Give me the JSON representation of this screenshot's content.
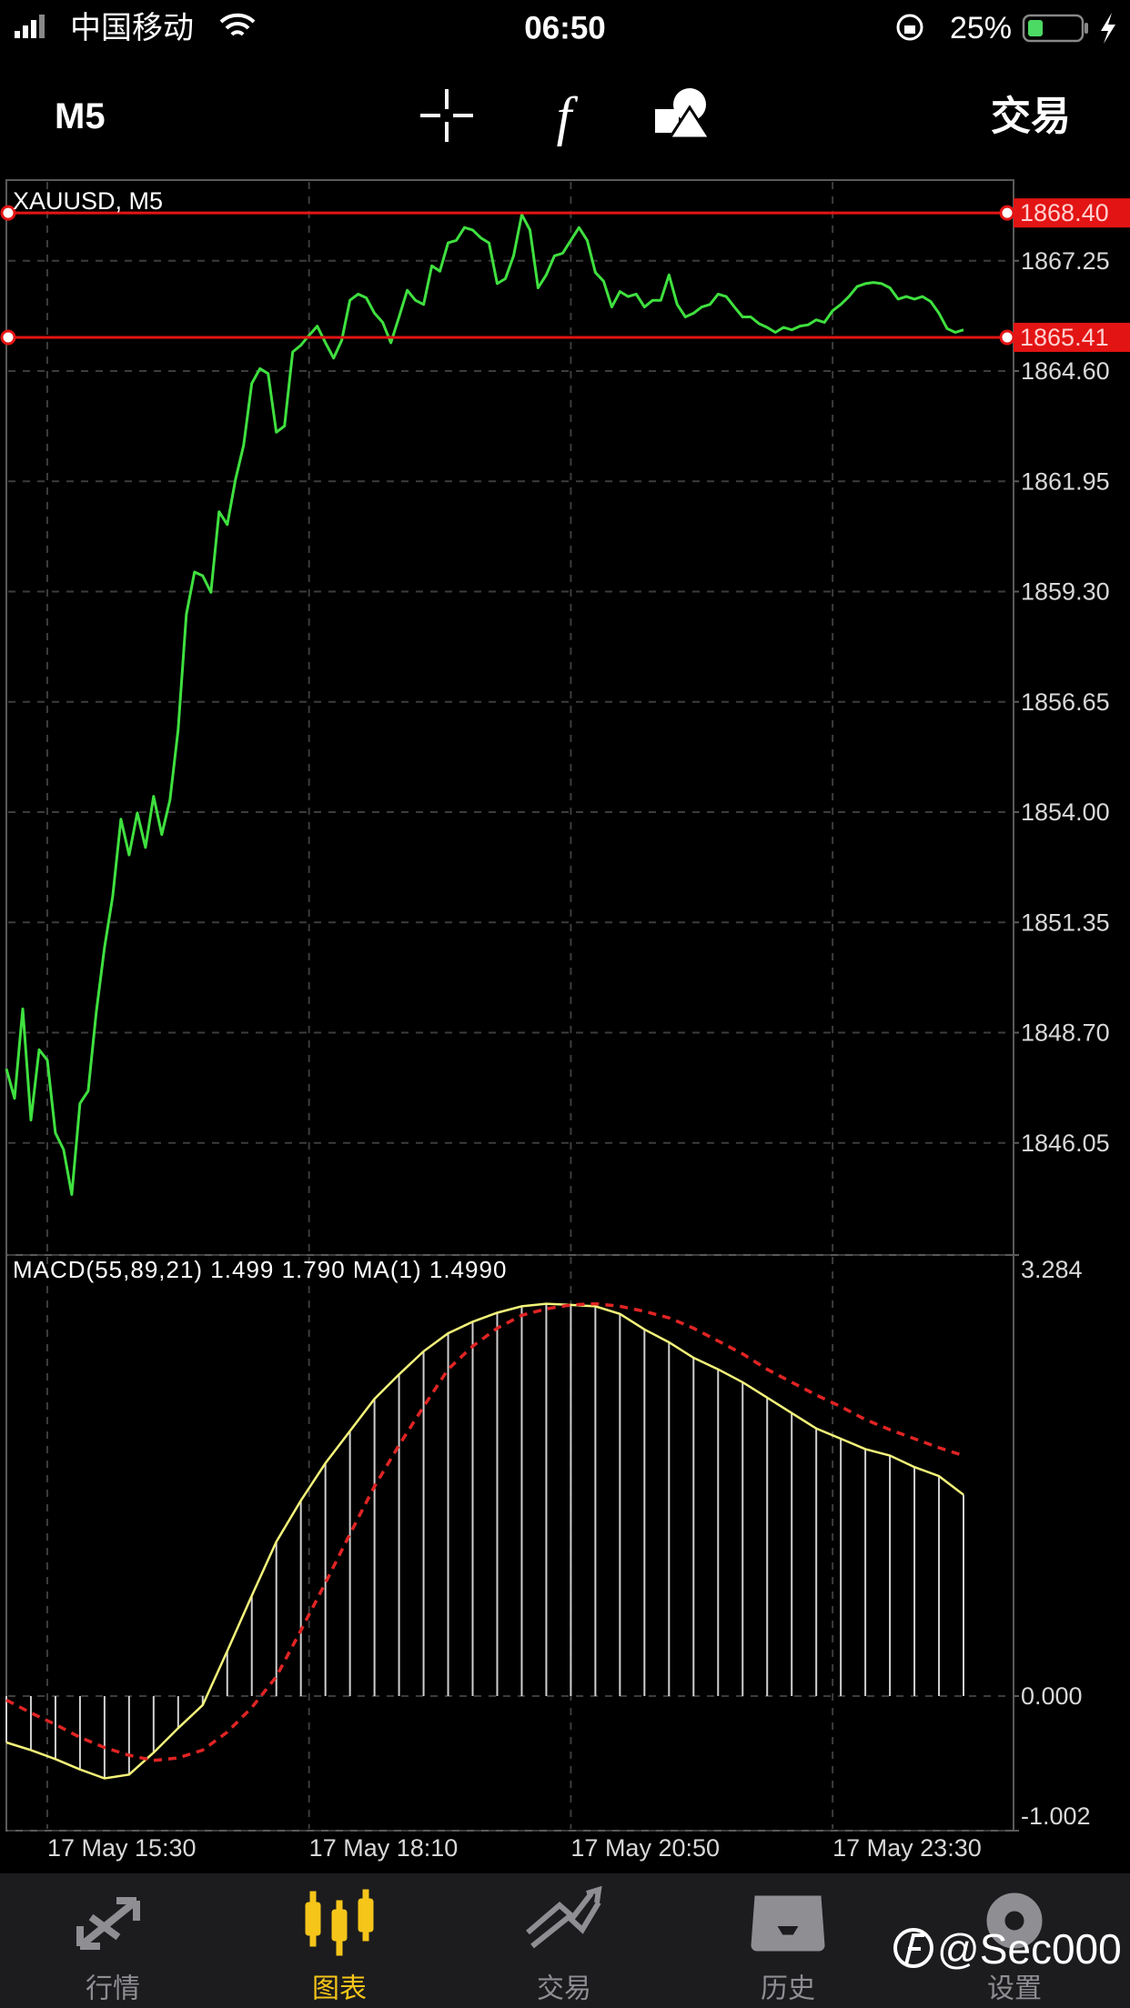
{
  "status_bar": {
    "carrier": "中国移动",
    "time": "06:50",
    "battery": "25%"
  },
  "toolbar": {
    "timeframe": "M5",
    "trade": "交易"
  },
  "chart_data": [
    {
      "type": "line",
      "title": "XAUUSD, M5",
      "color": "#3fe03f",
      "values": [
        1847.83,
        1847.12,
        1849.27,
        1846.6,
        1848.29,
        1848.04,
        1846.29,
        1845.89,
        1844.81,
        1847.0,
        1847.3,
        1849.21,
        1850.75,
        1851.98,
        1853.83,
        1852.97,
        1853.98,
        1853.15,
        1854.38,
        1853.46,
        1854.29,
        1855.98,
        1858.75,
        1859.77,
        1859.68,
        1859.28,
        1861.22,
        1860.91,
        1861.99,
        1862.82,
        1864.3,
        1864.66,
        1864.54,
        1863.13,
        1863.28,
        1865.06,
        1865.22,
        1865.46,
        1865.68,
        1865.28,
        1864.91,
        1865.34,
        1866.3,
        1866.45,
        1866.36,
        1865.99,
        1865.77,
        1865.28,
        1865.9,
        1866.54,
        1866.3,
        1866.2,
        1867.13,
        1867.0,
        1867.68,
        1867.74,
        1868.05,
        1867.99,
        1867.8,
        1867.68,
        1866.7,
        1866.82,
        1867.37,
        1868.36,
        1867.99,
        1866.6,
        1866.91,
        1867.37,
        1867.43,
        1867.74,
        1868.05,
        1867.74,
        1866.97,
        1866.76,
        1866.14,
        1866.51,
        1866.39,
        1866.45,
        1866.14,
        1866.3,
        1866.3,
        1866.91,
        1866.2,
        1865.9,
        1865.99,
        1866.14,
        1866.2,
        1866.45,
        1866.39,
        1866.14,
        1865.9,
        1865.9,
        1865.74,
        1865.65,
        1865.53,
        1865.65,
        1865.59,
        1865.68,
        1865.71,
        1865.83,
        1865.77,
        1866.05,
        1866.2,
        1866.39,
        1866.63,
        1866.7,
        1866.73,
        1866.7,
        1866.6,
        1866.33,
        1866.39,
        1866.33,
        1866.39,
        1866.27,
        1865.99,
        1865.62,
        1865.53,
        1865.59
      ],
      "xlim": [
        0,
        117
      ],
      "ylim": [
        1843.4,
        1869.19
      ],
      "yticks": [
        1867.25,
        {
          "value": 1864.6,
          "label": "1864.60"
        },
        1861.95,
        {
          "value": 1859.3,
          "label": "1859.30"
        },
        1856.65,
        {
          "value": 1854,
          "label": "1854.00"
        },
        1851.35,
        {
          "value": 1848.7,
          "label": "1848.70"
        },
        1846.05
      ],
      "grid": true,
      "levels": [
        {
          "value": 1868.4,
          "label": "1868.40"
        },
        1865.41
      ],
      "level_color": "#e31414"
    },
    {
      "type": "macd",
      "title": "MACD(55,89,21) 1.499 1.790 MA(1) 1.4990",
      "x": [
        0,
        3,
        6,
        9,
        12,
        15,
        18,
        21,
        24,
        27,
        30,
        33,
        36,
        39,
        42,
        45,
        48,
        51,
        54,
        57,
        60,
        63,
        66,
        69,
        72,
        75,
        78,
        81,
        84,
        87,
        90,
        93,
        96,
        99,
        102,
        105,
        108,
        111,
        114,
        117
      ],
      "xlim": [
        0,
        117
      ],
      "xticks": [
        {
          "value": 5,
          "label": "17 May 15:30"
        },
        {
          "value": 37,
          "label": "17 May 18:10"
        },
        {
          "value": 69,
          "label": "17 May 20:50"
        },
        {
          "value": 101,
          "label": "17 May 23:30"
        }
      ],
      "ylim": [
        -1.002,
        3.284
      ],
      "yticks": [
        3.284,
        {
          "value": 0,
          "label": "0.000"
        },
        -1.002
      ],
      "grid": true,
      "series": [
        {
          "style": "histogram",
          "color": "#cfcfcf",
          "line_color": "#f4f47a",
          "values": [
            -0.345,
            -0.402,
            -0.469,
            -0.546,
            -0.613,
            -0.584,
            -0.421,
            -0.239,
            -0.067,
            0.335,
            0.747,
            1.149,
            1.456,
            1.734,
            1.973,
            2.213,
            2.395,
            2.567,
            2.701,
            2.787,
            2.854,
            2.902,
            2.921,
            2.912,
            2.902,
            2.845,
            2.73,
            2.634,
            2.519,
            2.433,
            2.337,
            2.222,
            2.107,
            1.992,
            1.916,
            1.839,
            1.791,
            1.705,
            1.638,
            1.499
          ]
        },
        {
          "style": "dashed",
          "color": "#e02424",
          "values": [
            -0.029,
            -0.125,
            -0.211,
            -0.307,
            -0.383,
            -0.441,
            -0.479,
            -0.46,
            -0.402,
            -0.268,
            -0.086,
            0.144,
            0.489,
            0.843,
            1.207,
            1.561,
            1.868,
            2.155,
            2.433,
            2.605,
            2.739,
            2.835,
            2.883,
            2.912,
            2.921,
            2.902,
            2.864,
            2.816,
            2.739,
            2.644,
            2.548,
            2.433,
            2.337,
            2.241,
            2.155,
            2.059,
            1.983,
            1.916,
            1.849,
            1.79
          ]
        }
      ]
    }
  ],
  "tab_bar": {
    "tabs": [
      "行情",
      "图表",
      "交易",
      "历史",
      "设置"
    ],
    "active": 1,
    "color": "#8e8e93",
    "active_color": "#f5c51a"
  },
  "watermark": "@Sec000"
}
